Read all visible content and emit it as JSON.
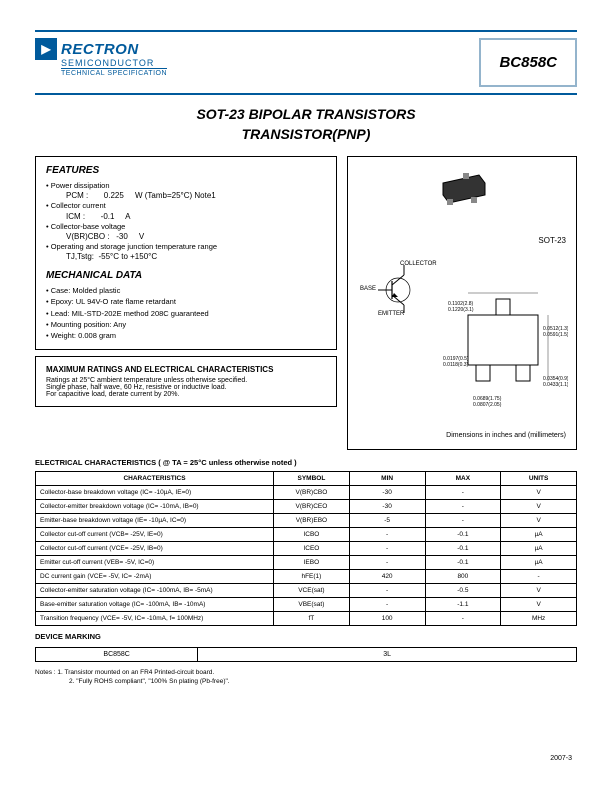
{
  "header": {
    "brand": "RECTRON",
    "brand_sub": "SEMICONDUCTOR",
    "brand_spec": "TECHNICAL SPECIFICATION",
    "part": "BC858C",
    "brand_color": "#005a9c",
    "border_color": "#94b4cc"
  },
  "title_line1": "SOT-23 BIPOLAR TRANSISTORS",
  "title_line2": "TRANSISTOR(PNP)",
  "features": {
    "heading": "FEATURES",
    "items": [
      "Power dissipation",
      "Collector current",
      "Collector-base voltage",
      "Operating and storage junction temperature range"
    ],
    "pcm_label": "PCM :",
    "pcm_val": "0.225",
    "pcm_unit": "W (Tamb=25°C) Note1",
    "icm_label": "ICM :",
    "icm_val": "-0.1",
    "icm_unit": "A",
    "vcbo_label": "V(BR)CBO :",
    "vcbo_val": "-30",
    "vcbo_unit": "V",
    "tj_label": "TJ,Tstg:",
    "tj_val": "-55°C to +150°C"
  },
  "mechanical": {
    "heading": "MECHANICAL DATA",
    "items": [
      "Case: Molded plastic",
      "Epoxy: UL 94V-O rate flame retardant",
      "Lead: MIL-STD-202E method 208C guaranteed",
      "Mounting position: Any",
      "Weight: 0.008 gram"
    ]
  },
  "maxratings": {
    "heading": "MAXIMUM RATINGS AND ELECTRICAL CHARACTERISTICS",
    "line1": "Ratings at 25°C ambient temperature unless otherwise specified.",
    "line2": "Single phase, half wave, 60 Hz, resistive or inductive load.",
    "line3": "For capacitive load, derate current by 20%."
  },
  "package": {
    "label": "SOT-23",
    "pins": {
      "collector": "COLLECTOR",
      "base": "BASE",
      "emitter": "EMITTER"
    },
    "dims_note": "Dimensions in inches and (millimeters)"
  },
  "elec": {
    "heading": "ELECTRICAL CHARACTERISTICS ( @ TA = 25°C unless otherwise noted )",
    "cols": [
      "CHARACTERISTICS",
      "SYMBOL",
      "MIN",
      "MAX",
      "UNITS"
    ],
    "rows": [
      [
        "Collector-base breakdown voltage (IC= -10µA, IE=0)",
        "V(BR)CBO",
        "-30",
        "-",
        "V"
      ],
      [
        "Collector-emitter breakdown voltage (IC= -10mA, IB=0)",
        "V(BR)CEO",
        "-30",
        "-",
        "V"
      ],
      [
        "Emitter-base breakdown voltage (IE= -10µA, IC=0)",
        "V(BR)EBO",
        "-5",
        "-",
        "V"
      ],
      [
        "Collector cut-off current (VCB= -25V, IE=0)",
        "ICBO",
        "-",
        "-0.1",
        "µA"
      ],
      [
        "Collector cut-off current (VCE= -25V, IB=0)",
        "ICEO",
        "-",
        "-0.1",
        "µA"
      ],
      [
        "Emitter cut-off current (VEB= -5V, IC=0)",
        "IEBO",
        "-",
        "-0.1",
        "µA"
      ],
      [
        "DC current gain (VCE= -5V, IC= -2mA)",
        "hFE(1)",
        "420",
        "800",
        "-"
      ],
      [
        "Collector-emitter saturation voltage (IC= -100mA, IB= -5mA)",
        "VCE(sat)",
        "-",
        "-0.5",
        "V"
      ],
      [
        "Base-emitter saturation voltage (IC= -100mA, IB= -10mA)",
        "VBE(sat)",
        "-",
        "-1.1",
        "V"
      ],
      [
        "Transition frequency (VCE= -5V, IC= -10mA, f= 100MHz)",
        "fT",
        "100",
        "-",
        "MHz"
      ]
    ]
  },
  "marking": {
    "heading": "DEVICE MARKING",
    "part": "BC858C",
    "code": "3L"
  },
  "notes": {
    "n1": "Notes : 1. Transistor mounted on an FR4 Printed-circuit board.",
    "n2": "2. \"Fully ROHS compliant\", \"100% Sn plating (Pb-free)\"."
  },
  "date": "2007-3"
}
